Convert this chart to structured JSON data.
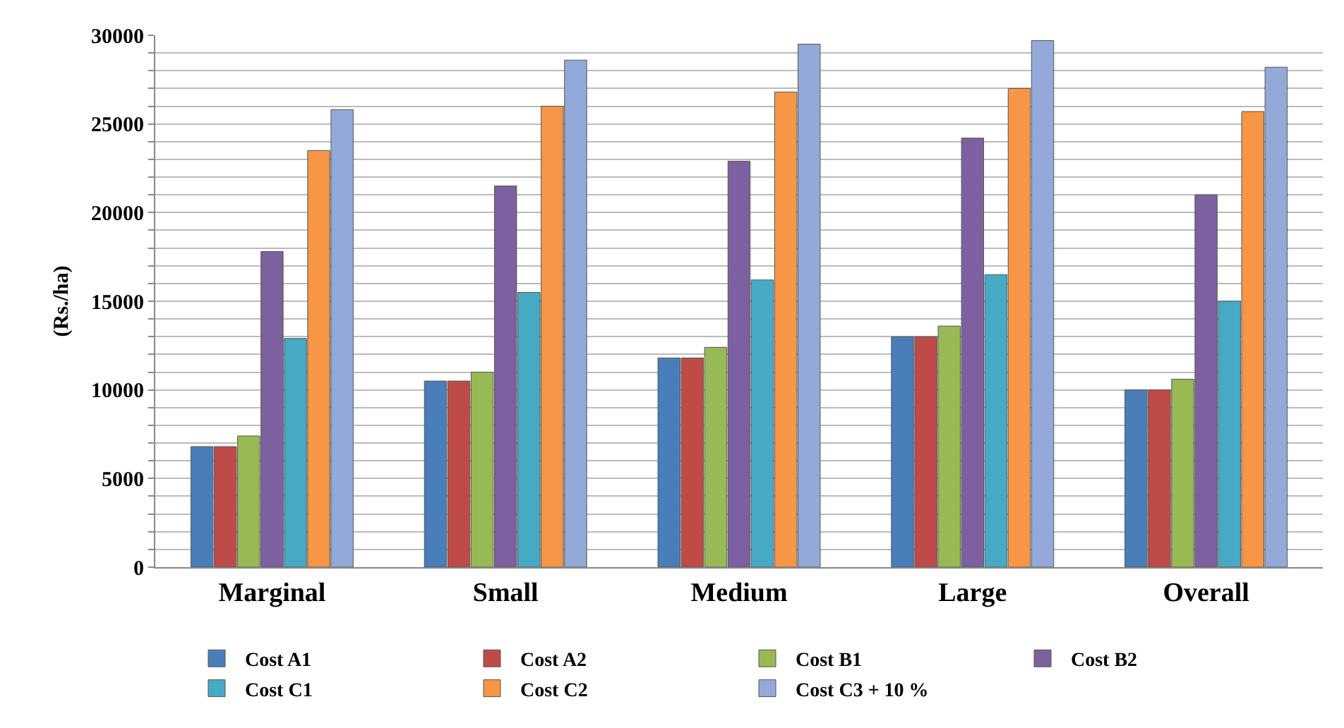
{
  "chart_data": {
    "type": "bar",
    "ylabel": "(Rs./ha)",
    "categories": [
      "Marginal",
      "Small",
      "Medium",
      "Large",
      "Overall"
    ],
    "series": [
      {
        "name": "Cost A1",
        "color": "#4a7ebb",
        "values": [
          6800,
          10500,
          11800,
          13000,
          10000
        ]
      },
      {
        "name": "Cost A2",
        "color": "#be4b48",
        "values": [
          6800,
          10500,
          11800,
          13000,
          10000
        ]
      },
      {
        "name": "Cost B1",
        "color": "#98b954",
        "values": [
          7400,
          11000,
          12400,
          13600,
          10600
        ]
      },
      {
        "name": "Cost B2",
        "color": "#7d60a0",
        "values": [
          17800,
          21500,
          22900,
          24200,
          21000
        ]
      },
      {
        "name": "Cost C1",
        "color": "#46aac5",
        "values": [
          12900,
          15500,
          16200,
          16500,
          15000
        ]
      },
      {
        "name": "Cost C2",
        "color": "#f79646",
        "values": [
          23500,
          26000,
          26800,
          27000,
          25700
        ]
      },
      {
        "name": "Cost C3 + 10 %",
        "color": "#93a9d8",
        "values": [
          25800,
          28600,
          29500,
          29700,
          28200
        ]
      }
    ],
    "ylim": [
      0,
      30000
    ],
    "yticks": [
      0,
      {
        "value": 1000,
        "label": null
      },
      {
        "value": 2000,
        "label": null
      },
      {
        "value": 3000,
        "label": null
      },
      {
        "value": 4000,
        "label": null
      },
      5000,
      {
        "value": 6000,
        "label": null
      },
      {
        "value": 7000,
        "label": null
      },
      {
        "value": 8000,
        "label": null
      },
      {
        "value": 9000,
        "label": null
      },
      10000,
      {
        "value": 11000,
        "label": null
      },
      {
        "value": 12000,
        "label": null
      },
      {
        "value": 13000,
        "label": null
      },
      {
        "value": 14000,
        "label": null
      },
      15000,
      {
        "value": 16000,
        "label": null
      },
      {
        "value": 17000,
        "label": null
      },
      {
        "value": 18000,
        "label": null
      },
      {
        "value": 19000,
        "label": null
      },
      20000,
      {
        "value": 21000,
        "label": null
      },
      {
        "value": 22000,
        "label": null
      },
      {
        "value": 23000,
        "label": null
      },
      {
        "value": 24000,
        "label": null
      },
      25000,
      {
        "value": 26000,
        "label": null
      },
      {
        "value": 27000,
        "label": null
      },
      {
        "value": 28000,
        "label": null
      },
      {
        "value": 29000,
        "label": null
      },
      30000
    ],
    "grid": "y",
    "legend": "bottom"
  }
}
